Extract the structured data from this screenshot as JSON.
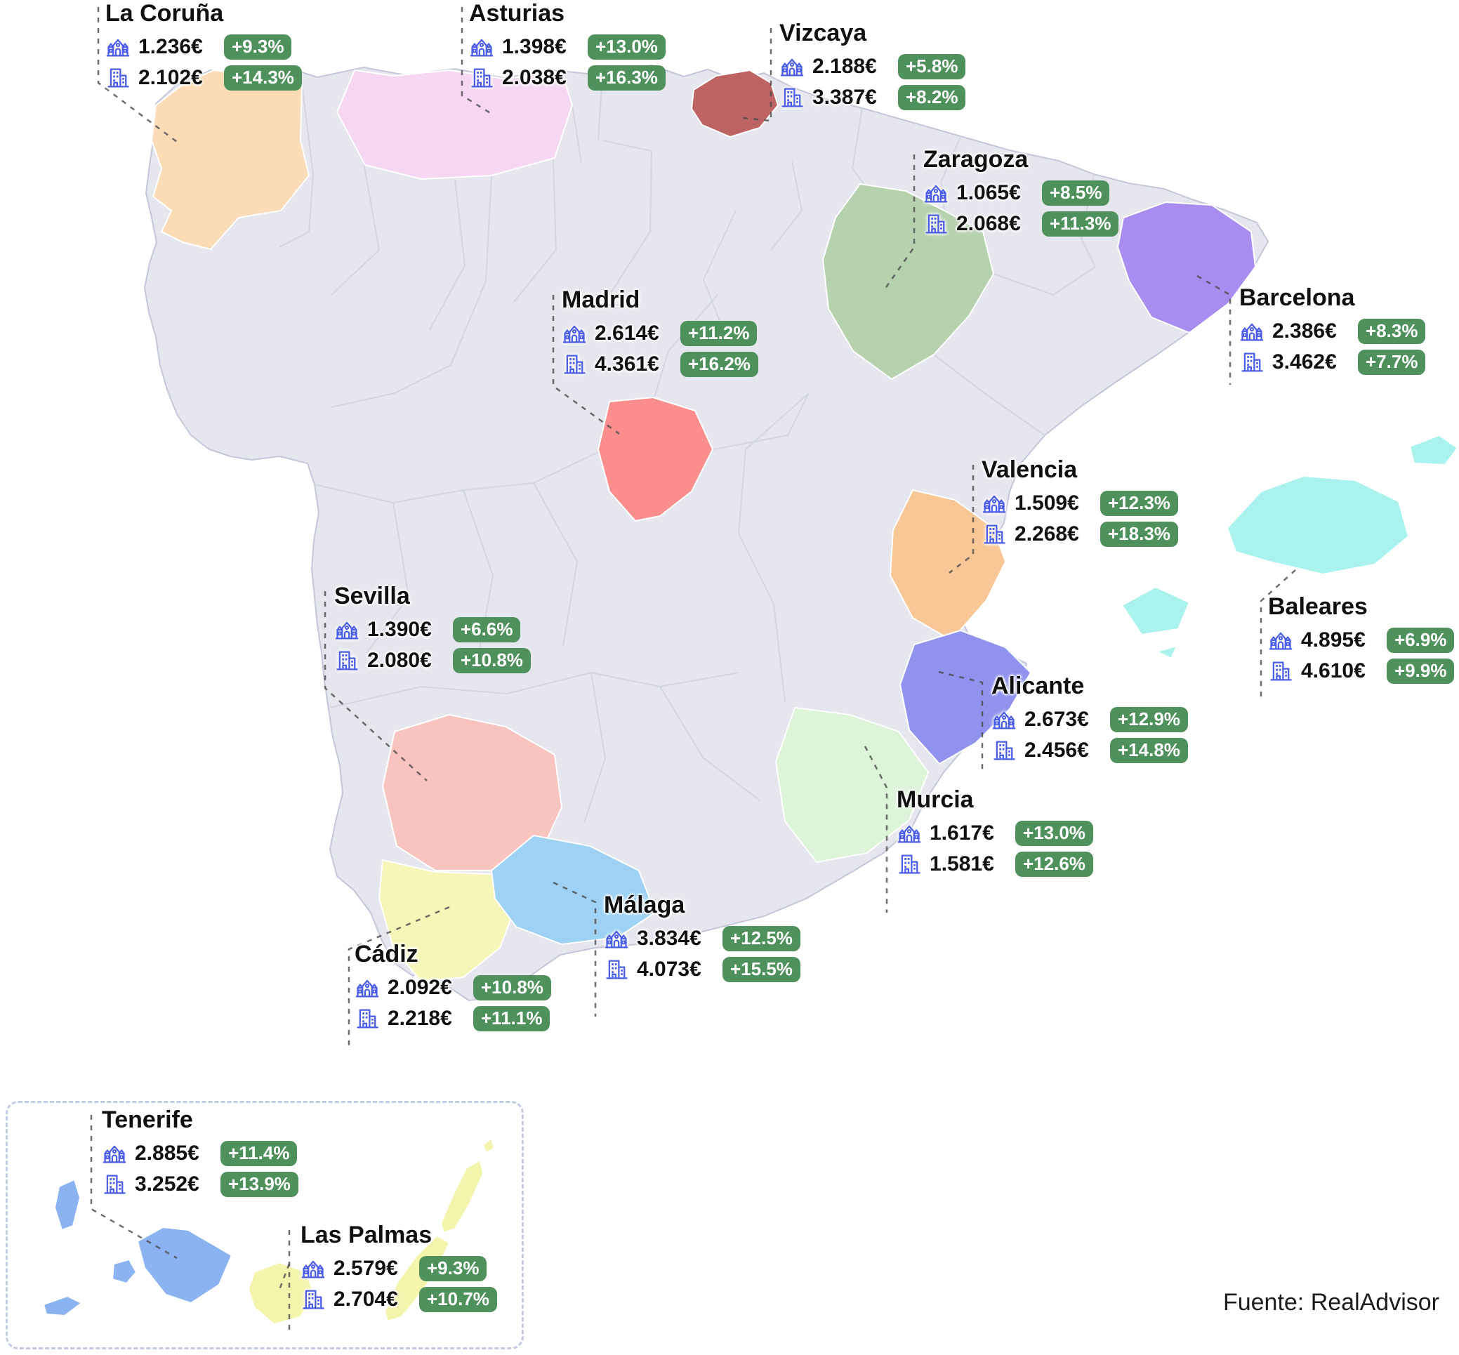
{
  "source": "Fuente: RealAdvisor",
  "theme": {
    "badge_green": "#4f915c",
    "icon_blue": "#4a5ce8",
    "map_base": "#e6e6ef",
    "map_inner_border": "#d4d5e3",
    "coast_border": "#c4c7d9",
    "leader_gray": "#4a4a4a",
    "inset_border": "#c3cbe2"
  },
  "icons": {
    "house": "house-icon",
    "apartment": "building-icon"
  },
  "provinces": [
    {
      "id": "la-coruna",
      "name": "La Coruña",
      "house_price": "1.236€",
      "house_change": "+9.3%",
      "apartment_price": "2.102€",
      "apartment_change": "+14.3%",
      "color": "#fcdcb6"
    },
    {
      "id": "asturias",
      "name": "Asturias",
      "house_price": "1.398€",
      "house_change": "+13.0%",
      "apartment_price": "2.038€",
      "apartment_change": "+16.3%",
      "color": "#f5d7f3"
    },
    {
      "id": "vizcaya",
      "name": "Vizcaya",
      "house_price": "2.188€",
      "house_change": "+5.8%",
      "apartment_price": "3.387€",
      "apartment_change": "+8.2%",
      "color": "#bd6363"
    },
    {
      "id": "zaragoza",
      "name": "Zaragoza",
      "house_price": "1.065€",
      "house_change": "+8.5%",
      "apartment_price": "2.068€",
      "apartment_change": "+11.3%",
      "color": "#b5d1ae"
    },
    {
      "id": "madrid",
      "name": "Madrid",
      "house_price": "2.614€",
      "house_change": "+11.2%",
      "apartment_price": "4.361€",
      "apartment_change": "+16.2%",
      "color": "#fb8d8d"
    },
    {
      "id": "barcelona",
      "name": "Barcelona",
      "house_price": "2.386€",
      "house_change": "+8.3%",
      "apartment_price": "3.462€",
      "apartment_change": "+7.7%",
      "color": "#a98cf0"
    },
    {
      "id": "valencia",
      "name": "Valencia",
      "house_price": "1.509€",
      "house_change": "+12.3%",
      "apartment_price": "2.268€",
      "apartment_change": "+18.3%",
      "color": "#f8c795"
    },
    {
      "id": "baleares",
      "name": "Baleares",
      "house_price": "4.895€",
      "house_change": "+6.9%",
      "apartment_price": "4.610€",
      "apartment_change": "+9.9%",
      "color": "#a9f2ee"
    },
    {
      "id": "sevilla",
      "name": "Sevilla",
      "house_price": "1.390€",
      "house_change": "+6.6%",
      "apartment_price": "2.080€",
      "apartment_change": "+10.8%",
      "color": "#f9c3c0"
    },
    {
      "id": "alicante",
      "name": "Alicante",
      "house_price": "2.673€",
      "house_change": "+12.9%",
      "apartment_price": "2.456€",
      "apartment_change": "+14.8%",
      "color": "#8f93ee"
    },
    {
      "id": "murcia",
      "name": "Murcia",
      "house_price": "1.617€",
      "house_change": "+13.0%",
      "apartment_price": "1.581€",
      "apartment_change": "+12.6%",
      "color": "#dcf5d8"
    },
    {
      "id": "malaga",
      "name": "Málaga",
      "house_price": "3.834€",
      "house_change": "+12.5%",
      "apartment_price": "4.073€",
      "apartment_change": "+15.5%",
      "color": "#9dd2f4"
    },
    {
      "id": "cadiz",
      "name": "Cádiz",
      "house_price": "2.092€",
      "house_change": "+10.8%",
      "apartment_price": "2.218€",
      "apartment_change": "+11.1%",
      "color": "#f6f6b9"
    },
    {
      "id": "tenerife",
      "name": "Tenerife",
      "house_price": "2.885€",
      "house_change": "+11.4%",
      "apartment_price": "3.252€",
      "apartment_change": "+13.9%",
      "color": "#8bb3f2"
    },
    {
      "id": "las-palmas",
      "name": "Las Palmas",
      "house_price": "2.579€",
      "house_change": "+9.3%",
      "apartment_price": "2.704€",
      "apartment_change": "+10.7%",
      "color": "#f4f5ad"
    }
  ]
}
